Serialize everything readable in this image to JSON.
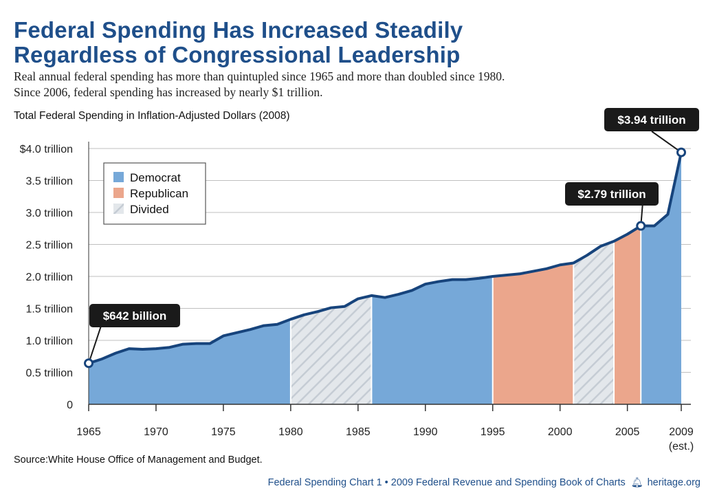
{
  "header": {
    "title_line1": "Federal Spending Has Increased Steadily",
    "title_line2": "Regardless of Congressional Leadership",
    "subtitle_line1": "Real annual federal spending has more than quintupled since 1965 and more than doubled since 1980.",
    "subtitle_line2": "Since 2006, federal spending has increased by nearly $1 trillion."
  },
  "chart_caption": "Total Federal Spending in Inflation-Adjusted Dollars (2008)",
  "source": "Source:White House Office of Management and Budget.",
  "footer": {
    "text": "Federal Spending Chart 1 • 2009 Federal Revenue and Spending Book of Charts",
    "icon": "bell-icon",
    "site": "heritage.org"
  },
  "chart_data": {
    "type": "area",
    "title": "Total Federal Spending in Inflation-Adjusted Dollars (2008)",
    "ylabel": "",
    "xlabel": "",
    "ylim": [
      0,
      4.0
    ],
    "xlim": [
      1965,
      2009
    ],
    "grid": true,
    "legend_position": "top-left",
    "y_ticks": [
      {
        "value": 0,
        "label": "0"
      },
      {
        "value": 0.5,
        "label": "0.5 trillion"
      },
      {
        "value": 1.0,
        "label": "1.0 trillion"
      },
      {
        "value": 1.5,
        "label": "1.5 trillion"
      },
      {
        "value": 2.0,
        "label": "2.0 trillion"
      },
      {
        "value": 2.5,
        "label": "2.5 trillion"
      },
      {
        "value": 3.0,
        "label": "3.0 trillion"
      },
      {
        "value": 3.5,
        "label": "3.5 trillion"
      },
      {
        "value": 4.0,
        "label": "$4.0 trillion"
      }
    ],
    "x_ticks": [
      {
        "value": 1965,
        "label": "1965"
      },
      {
        "value": 1970,
        "label": "1970"
      },
      {
        "value": 1975,
        "label": "1975"
      },
      {
        "value": 1980,
        "label": "1980"
      },
      {
        "value": 1985,
        "label": "1985"
      },
      {
        "value": 1990,
        "label": "1990"
      },
      {
        "value": 1995,
        "label": "1995"
      },
      {
        "value": 2000,
        "label": "2000"
      },
      {
        "value": 2005,
        "label": "2005"
      },
      {
        "value": 2009,
        "label": "2009",
        "sublabel": "(est.)"
      }
    ],
    "series": [
      {
        "x": [
          1965,
          1966,
          1967,
          1968,
          1969,
          1970,
          1971,
          1972,
          1973,
          1974,
          1975,
          1976,
          1977,
          1978,
          1979,
          1980,
          1981,
          1982,
          1983,
          1984,
          1985,
          1986,
          1987,
          1988,
          1989,
          1990,
          1991,
          1992,
          1993,
          1994,
          1995,
          1996,
          1997,
          1998,
          1999,
          2000,
          2001,
          2002,
          2003,
          2004,
          2005,
          2006,
          2007,
          2008,
          2009
        ],
        "y": [
          0.642,
          0.71,
          0.8,
          0.87,
          0.86,
          0.87,
          0.89,
          0.94,
          0.95,
          0.95,
          1.07,
          1.12,
          1.17,
          1.23,
          1.25,
          1.33,
          1.4,
          1.45,
          1.51,
          1.53,
          1.65,
          1.7,
          1.67,
          1.72,
          1.78,
          1.88,
          1.92,
          1.95,
          1.95,
          1.97,
          2.0,
          2.02,
          2.04,
          2.08,
          2.12,
          2.18,
          2.21,
          2.33,
          2.47,
          2.55,
          2.66,
          2.79,
          2.79,
          2.97,
          3.94
        ]
      }
    ],
    "periods": [
      {
        "start": 1965,
        "end": 1980,
        "control": "Democrat"
      },
      {
        "start": 1980,
        "end": 1986,
        "control": "Divided"
      },
      {
        "start": 1986,
        "end": 1995,
        "control": "Democrat"
      },
      {
        "start": 1995,
        "end": 2001,
        "control": "Republican"
      },
      {
        "start": 2001,
        "end": 2004,
        "control": "Divided"
      },
      {
        "start": 2004,
        "end": 2006,
        "control": "Republican"
      },
      {
        "start": 2006,
        "end": 2009,
        "control": "Democrat"
      }
    ],
    "legend": [
      {
        "label": "Democrat",
        "color": "#76a8d8"
      },
      {
        "label": "Republican",
        "color": "#eba68c"
      },
      {
        "label": "Divided",
        "color": "#d7dde3"
      }
    ],
    "colors": {
      "line": "#17447c",
      "title": "#1f4f8a",
      "callout": "#1a1a1a"
    },
    "annotations": [
      {
        "x": 1965,
        "y": 0.642,
        "label": "$642 billion"
      },
      {
        "x": 2006,
        "y": 2.79,
        "label": "$2.79 trillion"
      },
      {
        "x": 2009,
        "y": 3.94,
        "label": "$3.94 trillion"
      }
    ]
  }
}
